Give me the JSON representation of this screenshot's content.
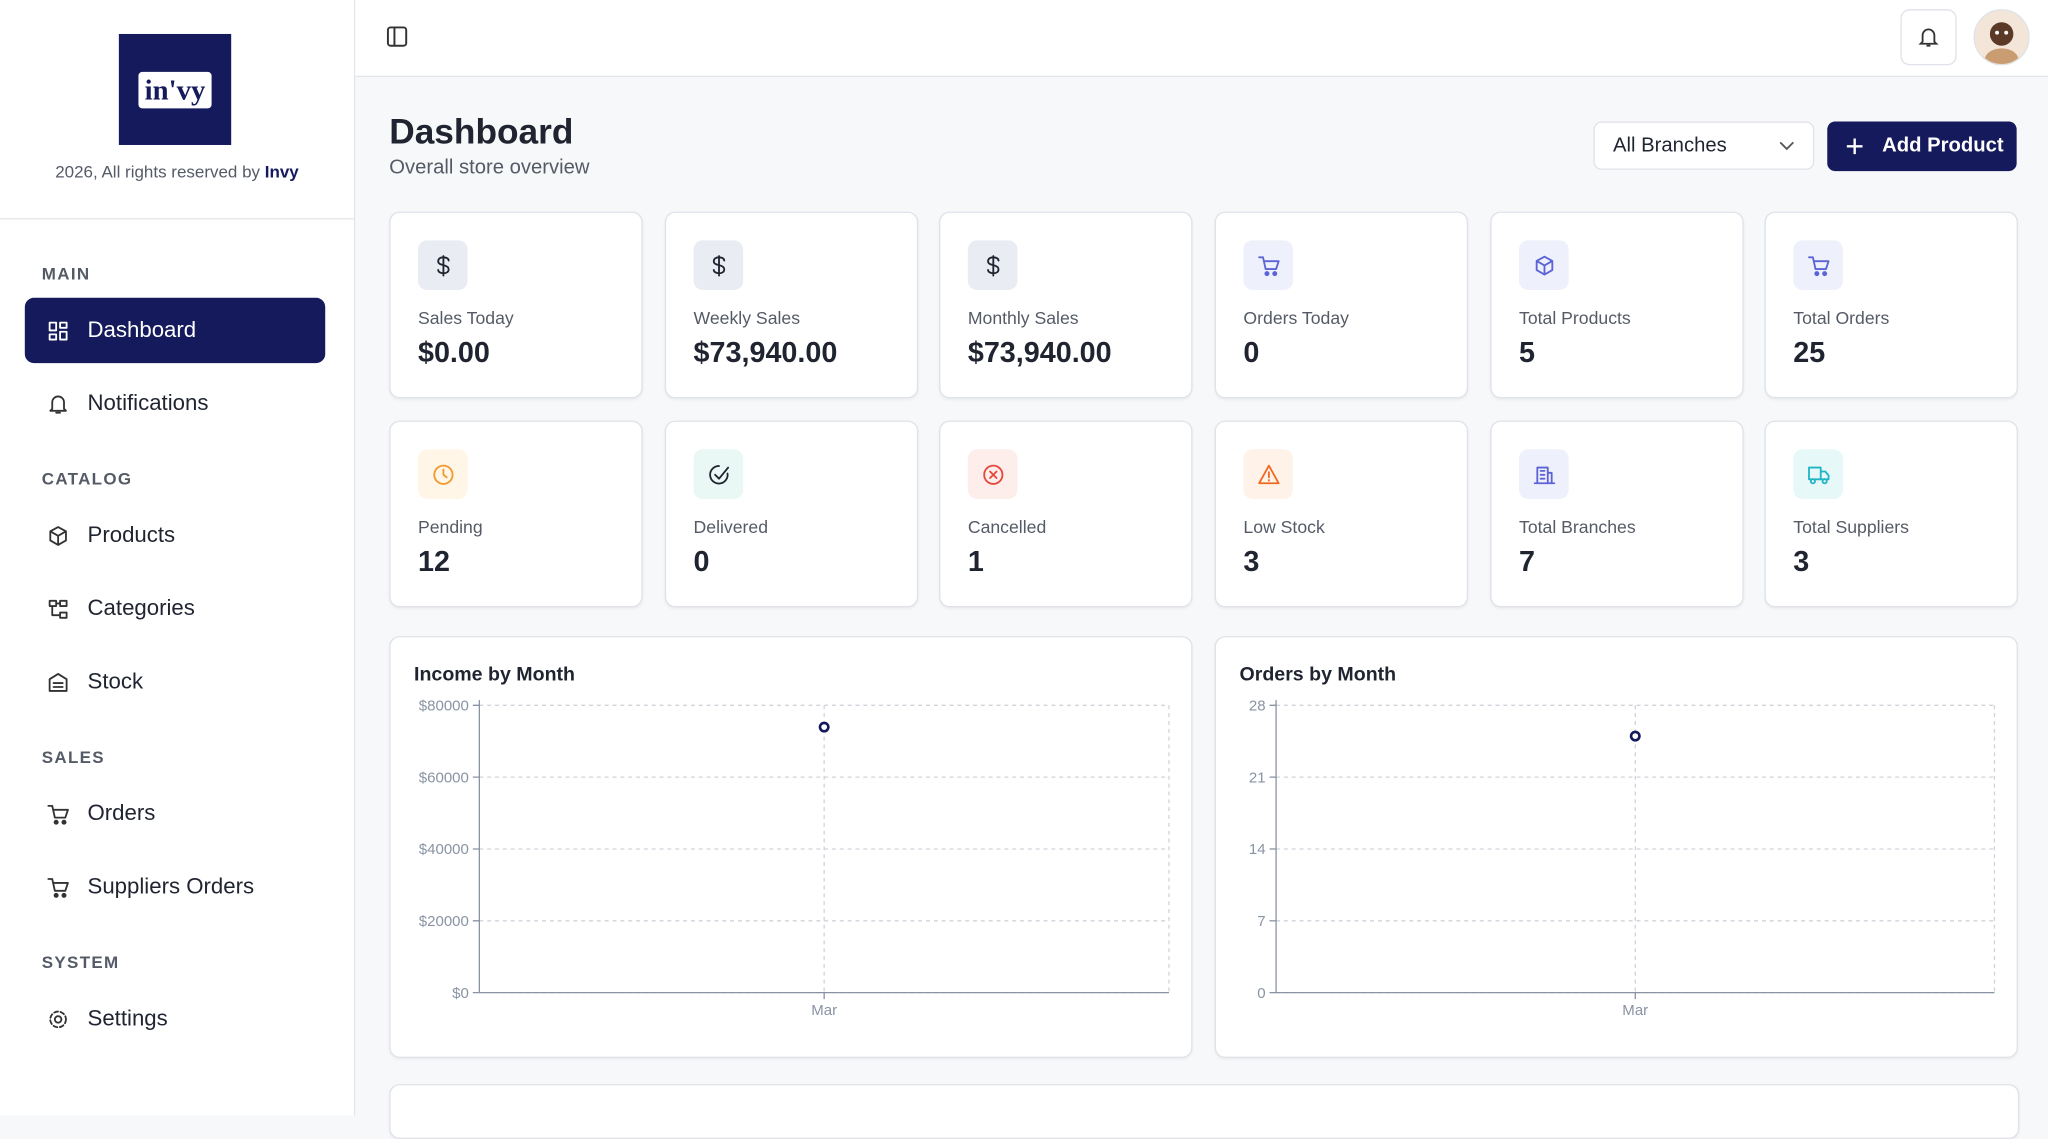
{
  "sidebar": {
    "logo": "in'vy",
    "copyright": "2026, All rights reserved by",
    "brand": "Invy",
    "sections": [
      {
        "title": "MAIN",
        "items": [
          "Dashboard",
          "Notifications"
        ]
      },
      {
        "title": "CATALOG",
        "items": [
          "Products",
          "Categories",
          "Stock"
        ]
      },
      {
        "title": "SALES",
        "items": [
          "Orders",
          "Suppliers Orders"
        ]
      },
      {
        "title": "SYSTEM",
        "items": [
          "Settings"
        ]
      }
    ]
  },
  "header": {
    "title": "Dashboard",
    "subtitle": "Overall store overview",
    "branch_select": "All Branches",
    "add_button": "Add Product"
  },
  "stats": [
    {
      "label": "Sales Today",
      "value": "$0.00"
    },
    {
      "label": "Weekly Sales",
      "value": "$73,940.00"
    },
    {
      "label": "Monthly Sales",
      "value": "$73,940.00"
    },
    {
      "label": "Orders Today",
      "value": 0
    },
    {
      "label": "Total Products",
      "value": 5
    },
    {
      "label": "Total Orders",
      "value": 25
    },
    {
      "label": "Pending",
      "value": 12
    },
    {
      "label": "Delivered",
      "value": 0
    },
    {
      "label": "Cancelled",
      "value": 1
    },
    {
      "label": "Low Stock",
      "value": 3
    },
    {
      "label": "Total Branches",
      "value": 7
    },
    {
      "label": "Total Suppliers",
      "value": 3
    }
  ],
  "chart_data": [
    {
      "type": "scatter",
      "title": "Income by Month",
      "categories": [
        "Mar"
      ],
      "values": [
        73940
      ],
      "color": "#141a5c",
      "ylim": [
        0,
        80000
      ],
      "yticks": [
        {
          "value": 0,
          "label": "$0"
        },
        {
          "value": 20000,
          "label": "$20000"
        },
        {
          "value": 40000,
          "label": "$40000"
        },
        {
          "value": 60000,
          "label": "$60000"
        },
        {
          "value": 80000,
          "label": "$80000"
        }
      ],
      "grid": true
    },
    {
      "type": "scatter",
      "title": "Orders by Month",
      "categories": [
        "Mar"
      ],
      "values": [
        25
      ],
      "color": "#141a5c",
      "ylim": [
        0,
        28
      ],
      "yticks": [
        0,
        7,
        14,
        21,
        28
      ],
      "grid": true
    }
  ]
}
